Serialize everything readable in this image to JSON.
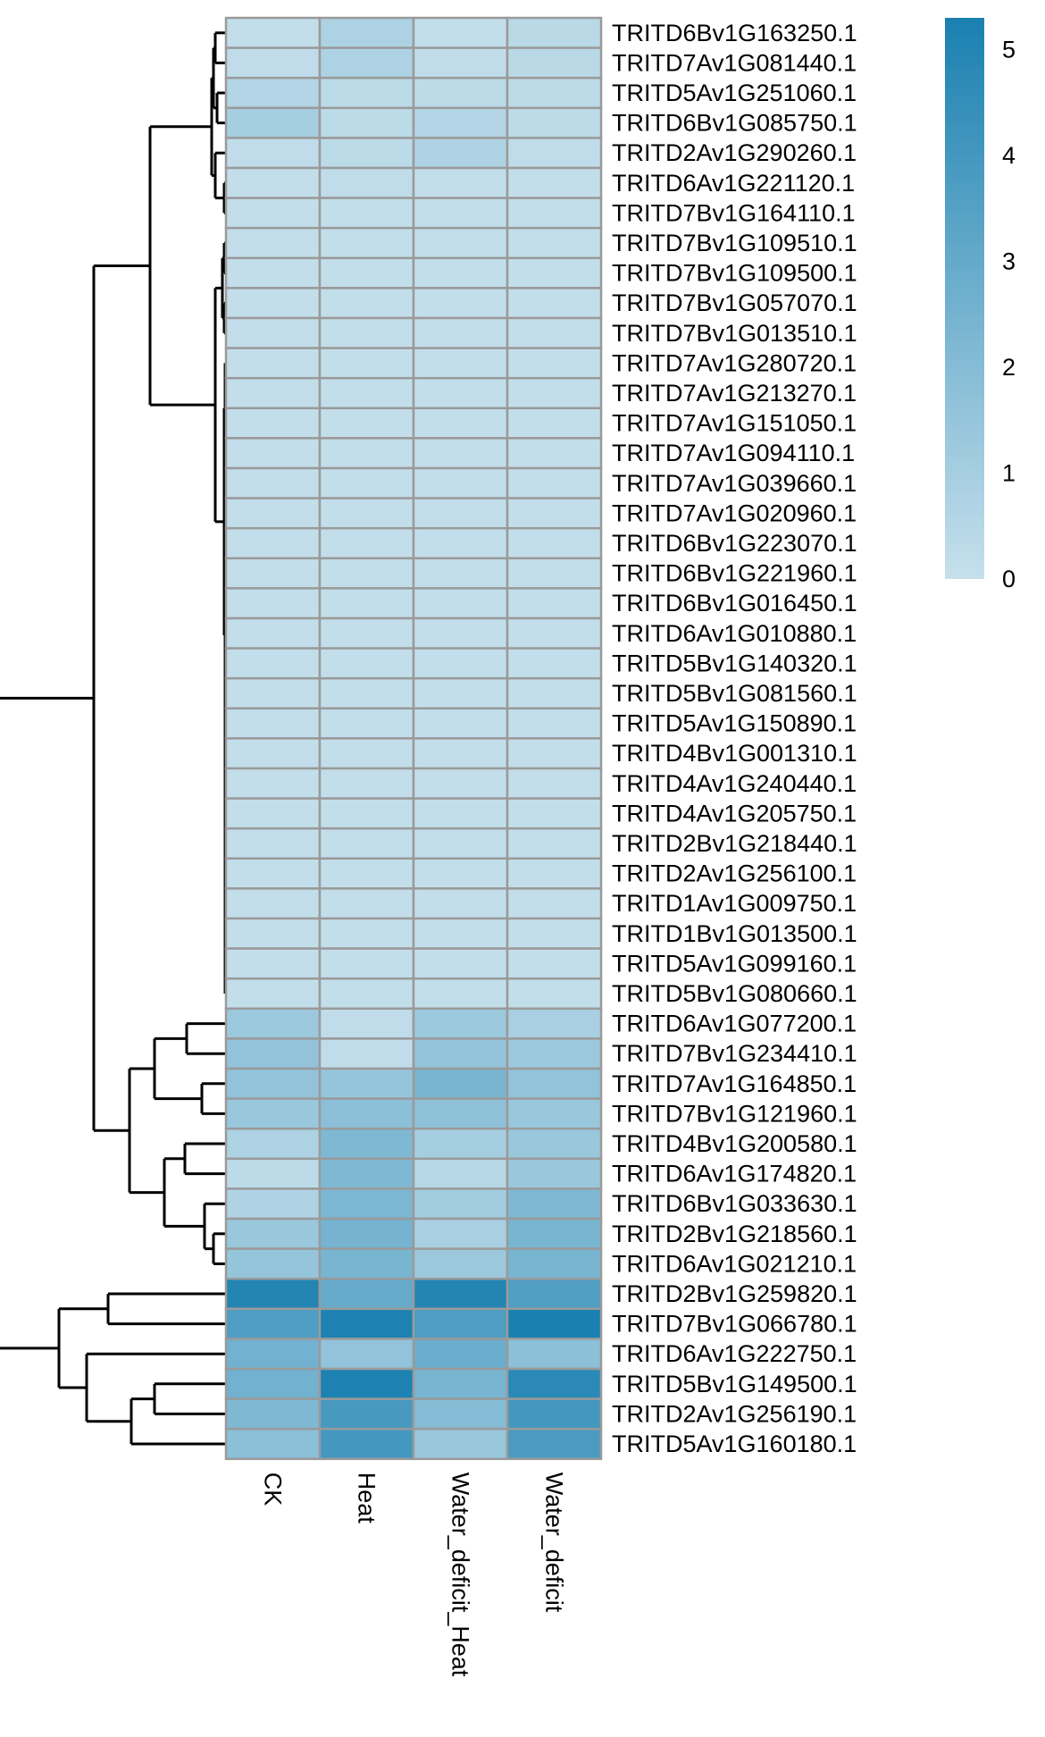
{
  "chart_data": {
    "type": "heatmap",
    "columns": [
      "CK",
      "Heat",
      "Water_deficit_Heat",
      "Water_deficit"
    ],
    "rows": [
      "TRITD6Bv1G163250.1",
      "TRITD7Av1G081440.1",
      "TRITD5Av1G251060.1",
      "TRITD6Bv1G085750.1",
      "TRITD2Av1G290260.1",
      "TRITD6Av1G221120.1",
      "TRITD7Bv1G164110.1",
      "TRITD7Bv1G109510.1",
      "TRITD7Bv1G109500.1",
      "TRITD7Bv1G057070.1",
      "TRITD7Bv1G013510.1",
      "TRITD7Av1G280720.1",
      "TRITD7Av1G213270.1",
      "TRITD7Av1G151050.1",
      "TRITD7Av1G094110.1",
      "TRITD7Av1G039660.1",
      "TRITD7Av1G020960.1",
      "TRITD6Bv1G223070.1",
      "TRITD6Bv1G221960.1",
      "TRITD6Bv1G016450.1",
      "TRITD6Av1G010880.1",
      "TRITD5Bv1G140320.1",
      "TRITD5Bv1G081560.1",
      "TRITD5Av1G150890.1",
      "TRITD4Bv1G001310.1",
      "TRITD4Av1G240440.1",
      "TRITD4Av1G205750.1",
      "TRITD2Bv1G218440.1",
      "TRITD2Av1G256100.1",
      "TRITD1Av1G009750.1",
      "TRITD1Bv1G013500.1",
      "TRITD5Av1G099160.1",
      "TRITD5Bv1G080660.1",
      "TRITD6Av1G077200.1",
      "TRITD7Bv1G234410.1",
      "TRITD7Av1G164850.1",
      "TRITD7Bv1G121960.1",
      "TRITD4Bv1G200580.1",
      "TRITD6Av1G174820.1",
      "TRITD6Bv1G033630.1",
      "TRITD2Bv1G218560.1",
      "TRITD6Av1G021210.1",
      "TRITD2Bv1G259820.1",
      "TRITD7Bv1G066780.1",
      "TRITD6Av1G222750.1",
      "TRITD5Bv1G149500.1",
      "TRITD2Av1G256190.1",
      "TRITD5Av1G160180.1"
    ],
    "values": [
      [
        0.1,
        0.8,
        0.1,
        0.4
      ],
      [
        0.2,
        0.8,
        0.2,
        0.4
      ],
      [
        0.6,
        0.3,
        0.3,
        0.3
      ],
      [
        1.0,
        0.3,
        0.6,
        0.3
      ],
      [
        0.2,
        0.3,
        0.7,
        0.2
      ],
      [
        0.1,
        0.2,
        0.1,
        0.1
      ],
      [
        0.1,
        0.1,
        0.1,
        0.1
      ],
      [
        0.1,
        0.1,
        0.1,
        0.1
      ],
      [
        0.1,
        0.1,
        0.1,
        0.1
      ],
      [
        0.1,
        0.1,
        0.1,
        0.1
      ],
      [
        0.1,
        0.1,
        0.1,
        0.1
      ],
      [
        0.1,
        0.1,
        0.1,
        0.1
      ],
      [
        0.1,
        0.1,
        0.1,
        0.1
      ],
      [
        0.1,
        0.1,
        0.1,
        0.1
      ],
      [
        0.1,
        0.1,
        0.1,
        0.1
      ],
      [
        0.1,
        0.1,
        0.1,
        0.1
      ],
      [
        0.1,
        0.1,
        0.1,
        0.1
      ],
      [
        0.1,
        0.1,
        0.1,
        0.1
      ],
      [
        0.1,
        0.1,
        0.1,
        0.1
      ],
      [
        0.1,
        0.1,
        0.1,
        0.1
      ],
      [
        0.1,
        0.1,
        0.1,
        0.1
      ],
      [
        0.1,
        0.1,
        0.1,
        0.1
      ],
      [
        0.1,
        0.1,
        0.1,
        0.1
      ],
      [
        0.1,
        0.1,
        0.1,
        0.1
      ],
      [
        0.1,
        0.1,
        0.1,
        0.1
      ],
      [
        0.1,
        0.1,
        0.1,
        0.1
      ],
      [
        0.1,
        0.1,
        0.1,
        0.1
      ],
      [
        0.1,
        0.1,
        0.1,
        0.1
      ],
      [
        0.1,
        0.1,
        0.1,
        0.1
      ],
      [
        0.1,
        0.1,
        0.1,
        0.1
      ],
      [
        0.1,
        0.1,
        0.1,
        0.1
      ],
      [
        0.1,
        0.1,
        0.1,
        0.1
      ],
      [
        0.1,
        0.1,
        0.1,
        0.1
      ],
      [
        1.3,
        0.2,
        1.3,
        0.9
      ],
      [
        1.6,
        0.2,
        1.6,
        1.3
      ],
      [
        1.6,
        1.5,
        2.4,
        1.6
      ],
      [
        1.4,
        1.8,
        1.7,
        1.4
      ],
      [
        0.8,
        2.2,
        1.0,
        1.4
      ],
      [
        0.3,
        2.2,
        0.5,
        1.4
      ],
      [
        0.7,
        2.3,
        1.1,
        2.2
      ],
      [
        1.4,
        2.5,
        0.9,
        2.4
      ],
      [
        1.5,
        2.4,
        1.3,
        2.4
      ],
      [
        5.0,
        3.0,
        5.0,
        3.6
      ],
      [
        3.7,
        5.2,
        3.7,
        5.3
      ],
      [
        2.6,
        1.6,
        2.8,
        1.8
      ],
      [
        2.6,
        5.2,
        2.4,
        4.8
      ],
      [
        2.2,
        3.9,
        2.0,
        4.0
      ],
      [
        1.8,
        4.0,
        1.4,
        3.8
      ]
    ],
    "color_scale": {
      "min": 0,
      "max": 5.3,
      "low_color": "#c6e0ec",
      "high_color": "#1a80b0",
      "ticks": [
        "0",
        "1",
        "2",
        "3",
        "4",
        "5"
      ]
    },
    "dendrogram": "row-clustered",
    "legend_position": "top-right"
  }
}
